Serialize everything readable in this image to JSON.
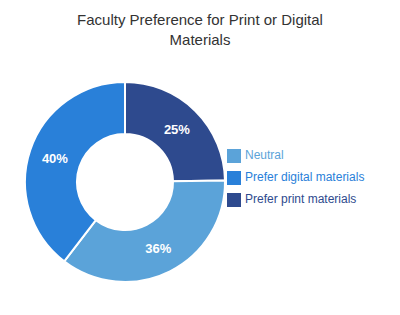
{
  "chart_data": {
    "type": "pie",
    "title": "Faculty Preference for Print or Digital\nMaterials",
    "categories": [
      "Prefer print materials",
      "Neutral",
      "Prefer digital materials"
    ],
    "values": [
      25,
      36,
      40
    ],
    "value_labels": [
      "25%",
      "36%",
      "40%"
    ],
    "colors": [
      "#2e4a8e",
      "#5ba3d9",
      "#2980d9"
    ],
    "data_labels": true,
    "legend": "right"
  }
}
